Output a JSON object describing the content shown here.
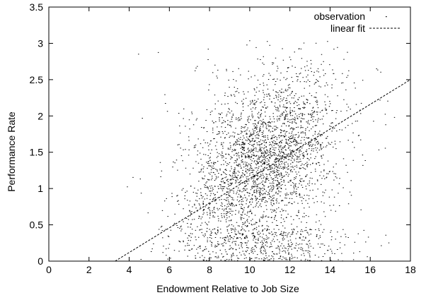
{
  "chart_data": {
    "type": "scatter",
    "title": "",
    "xlabel": "Endowment Relative to Job Size",
    "ylabel": "Performance Rate",
    "xlim": [
      0,
      18
    ],
    "ylim": [
      0,
      3.5
    ],
    "xticks": [
      "0",
      "2",
      "4",
      "6",
      "8",
      "10",
      "12",
      "14",
      "16",
      "18"
    ],
    "yticks": [
      "0",
      "0.5",
      "1",
      "1.5",
      "2",
      "2.5",
      "3",
      "3.5"
    ],
    "grid": false,
    "legend_position": "top-right",
    "series": [
      {
        "name": "observation",
        "kind": "scatter",
        "color": "#000000",
        "center": [
          10.5,
          1.35
        ],
        "approx_count": 6000,
        "x_range": [
          3.5,
          17.5
        ],
        "y_range": [
          0,
          3.05
        ]
      },
      {
        "name": "linear fit",
        "kind": "dashed-line",
        "color": "#000000",
        "x": [
          3.3,
          18
        ],
        "y": [
          0,
          2.5
        ]
      }
    ]
  }
}
